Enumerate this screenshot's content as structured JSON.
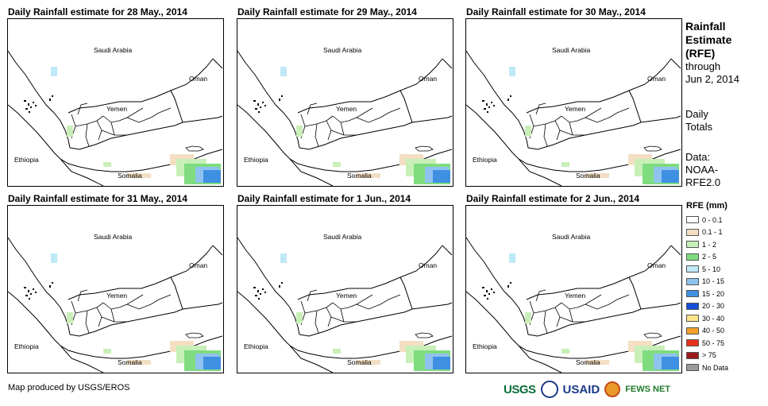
{
  "panels": [
    {
      "title": "Daily Rainfall estimate for 28 May., 2014"
    },
    {
      "title": "Daily Rainfall estimate for 29 May., 2014"
    },
    {
      "title": "Daily Rainfall estimate for 30 May., 2014"
    },
    {
      "title": "Daily Rainfall estimate for 31 May., 2014"
    },
    {
      "title": "Daily Rainfall estimate for 1 Jun., 2014"
    },
    {
      "title": "Daily Rainfall estimate for 2 Jun., 2014"
    }
  ],
  "map_labels": {
    "saudi": "Saudi Arabia",
    "oman": "Oman",
    "yemen": "Yemen",
    "ethiopia": "Ethiopia",
    "somalia": "Somalia"
  },
  "side": {
    "title_line1": "Rainfall",
    "title_line2": "Estimate",
    "title_line3": "(RFE)",
    "through": "through",
    "date": "Jun 2, 2014",
    "daily": "Daily",
    "totals": "Totals",
    "data_label": "Data:",
    "data_src1": "NOAA-",
    "data_src2": "RFE2.0"
  },
  "legend": {
    "heading": "RFE (mm)",
    "items": [
      {
        "label": "0 - 0.1",
        "color": "#ffffff"
      },
      {
        "label": "0.1 - 1",
        "color": "#f3dfc3"
      },
      {
        "label": "1 - 2",
        "color": "#c8efb8"
      },
      {
        "label": "2 - 5",
        "color": "#7fdc7f"
      },
      {
        "label": "5 - 10",
        "color": "#bfe9f7"
      },
      {
        "label": "10 - 15",
        "color": "#8fc3ef"
      },
      {
        "label": "15 - 20",
        "color": "#3f8fe3"
      },
      {
        "label": "20 - 30",
        "color": "#1650d8"
      },
      {
        "label": "30 - 40",
        "color": "#fbe48a"
      },
      {
        "label": "40 - 50",
        "color": "#f4a12c"
      },
      {
        "label": "50 - 75",
        "color": "#e8311a"
      },
      {
        "label": "> 75",
        "color": "#9c1c1c"
      },
      {
        "label": "No Data",
        "color": "#9a9a9a"
      }
    ]
  },
  "footer": {
    "credit": "Map produced by USGS/EROS"
  },
  "logos": {
    "usgs": "USGS",
    "usaid": "USAID",
    "fews": "FEWS NET"
  }
}
